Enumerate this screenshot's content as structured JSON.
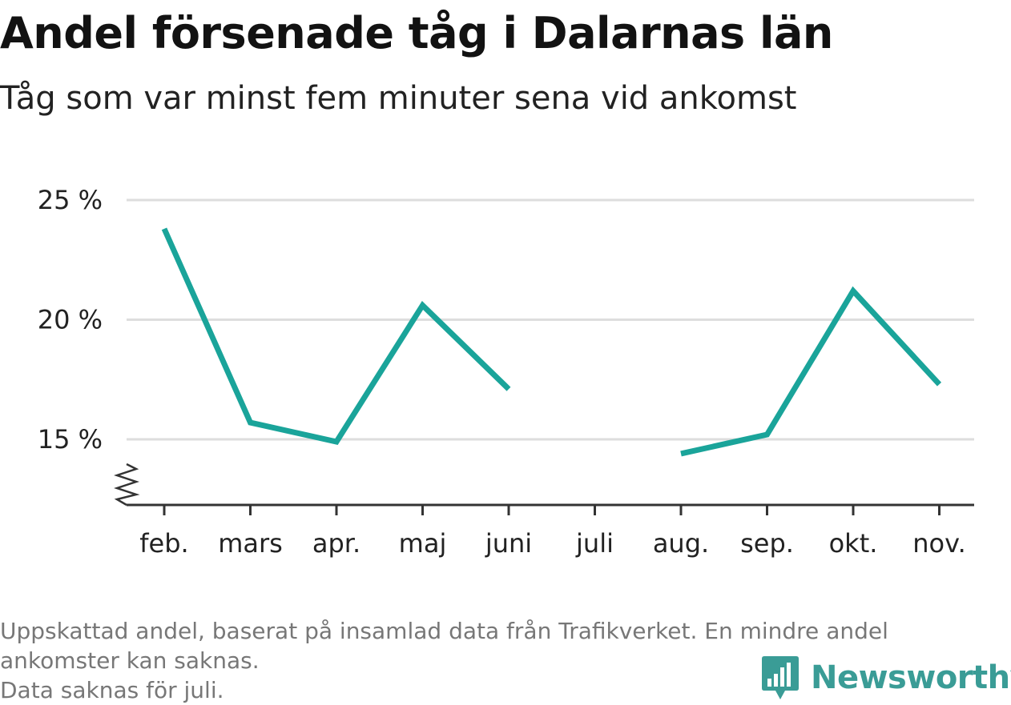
{
  "header": {
    "title": "Andel försenade tåg i Dalarnas län",
    "subtitle": "Tåg som var minst fem minuter sena vid ankomst"
  },
  "footer": {
    "note_line1": "Uppskattad andel, baserat på insamlad data från Trafikverket. En mindre andel",
    "note_line2": "ankomster kan saknas.",
    "note_line3": "Data saknas för juli.",
    "brand": "Newsworthy"
  },
  "colors": {
    "line": "#1aa49a",
    "grid": "#dddddd",
    "axis": "#333333",
    "brand": "#3a9c96"
  },
  "chart_data": {
    "type": "line",
    "title": "Andel försenade tåg i Dalarnas län",
    "subtitle": "Tåg som var minst fem minuter sena vid ankomst",
    "xlabel": "",
    "ylabel": "",
    "categories": [
      "feb.",
      "mars",
      "apr.",
      "maj",
      "juni",
      "juli",
      "aug.",
      "sep.",
      "okt.",
      "nov."
    ],
    "series": [
      {
        "values": [
          23.8,
          15.7,
          14.9,
          20.6,
          17.1,
          null,
          14.4,
          15.2,
          21.2,
          17.3
        ]
      }
    ],
    "yticks": [
      15,
      20,
      25
    ],
    "ytick_labels": [
      "15 %",
      "20 %",
      "25 %"
    ],
    "ylim": [
      12.3,
      25
    ],
    "y_axis_break": true,
    "grid": true,
    "legend": "none"
  }
}
